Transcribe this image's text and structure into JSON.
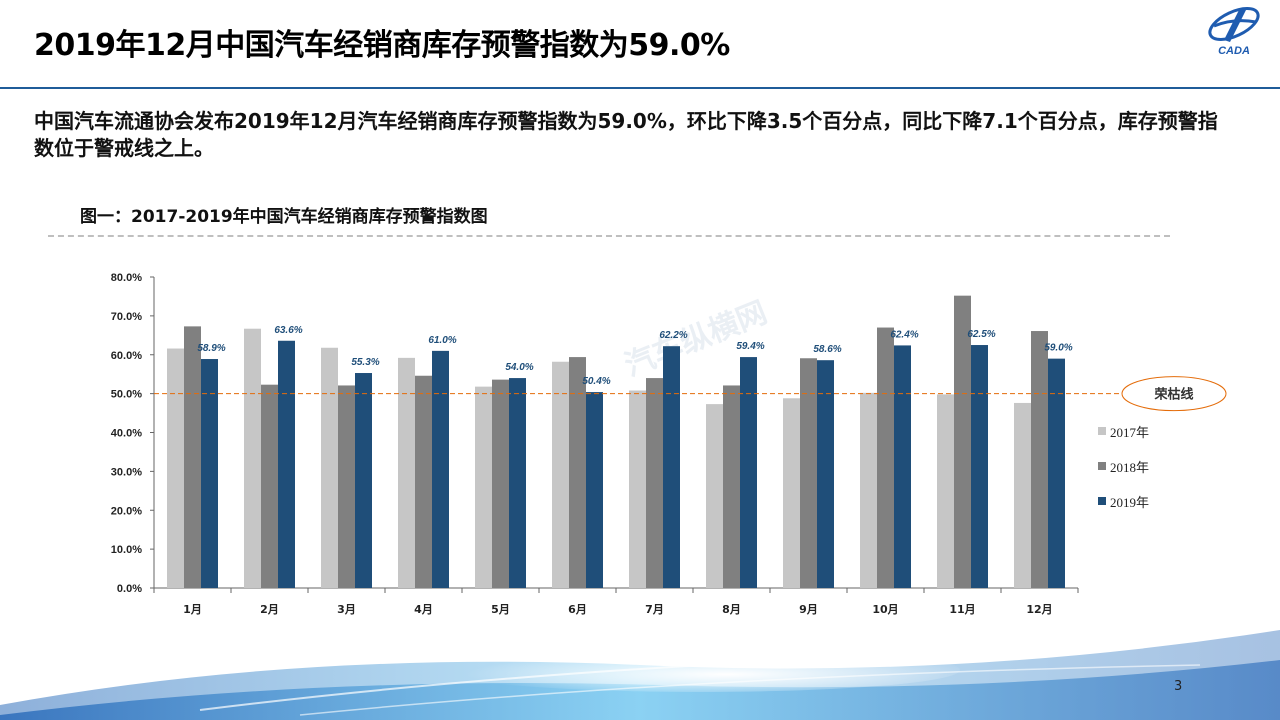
{
  "header": {
    "title": "2019年12月中国汽车经销商库存预警指数为59.0%",
    "logo_text": "CADA"
  },
  "summary": "中国汽车流通协会发布2019年12月汽车经销商库存预警指数为59.0%，环比下降3.5个百分点，同比下降7.1个百分点，库存预警指数位于警戒线之上。",
  "figure_title": "图一：2017-2019年中国汽车经销商库存预警指数图",
  "page_number": "3",
  "watermark": "汽车纵横网",
  "colors": {
    "s2017": "#c6c6c6",
    "s2018": "#808080",
    "s2019": "#1f4e79",
    "threshold": "#e46c0a",
    "label": "#1f4e79"
  },
  "chart_data": {
    "type": "bar",
    "categories": [
      "1月",
      "2月",
      "3月",
      "4月",
      "5月",
      "6月",
      "7月",
      "8月",
      "9月",
      "10月",
      "11月",
      "12月"
    ],
    "series": [
      {
        "name": "2017年",
        "values": [
          61.6,
          66.7,
          61.8,
          59.2,
          51.8,
          58.2,
          50.8,
          47.3,
          48.8,
          50.2,
          49.8,
          47.6
        ]
      },
      {
        "name": "2018年",
        "values": [
          67.3,
          52.3,
          52.1,
          54.6,
          53.6,
          59.4,
          54.0,
          52.1,
          59.1,
          67.0,
          75.2,
          66.1
        ]
      },
      {
        "name": "2019年",
        "values": [
          58.9,
          63.6,
          55.3,
          61.0,
          54.0,
          50.4,
          62.2,
          59.4,
          58.6,
          62.4,
          62.5,
          59.0
        ]
      }
    ],
    "data_labels_2019": [
      "58.9%",
      "63.6%",
      "55.3%",
      "61.0%",
      "54.0%",
      "50.4%",
      "62.2%",
      "59.4%",
      "58.6%",
      "62.4%",
      "62.5%",
      "59.0%"
    ],
    "y_ticks": [
      "0.0%",
      "10.0%",
      "20.0%",
      "30.0%",
      "40.0%",
      "50.0%",
      "60.0%",
      "70.0%",
      "80.0%"
    ],
    "ylim": [
      0,
      80
    ],
    "threshold": {
      "value": 50,
      "label": "荣枯线"
    },
    "legend_position": "right",
    "grid": false
  }
}
